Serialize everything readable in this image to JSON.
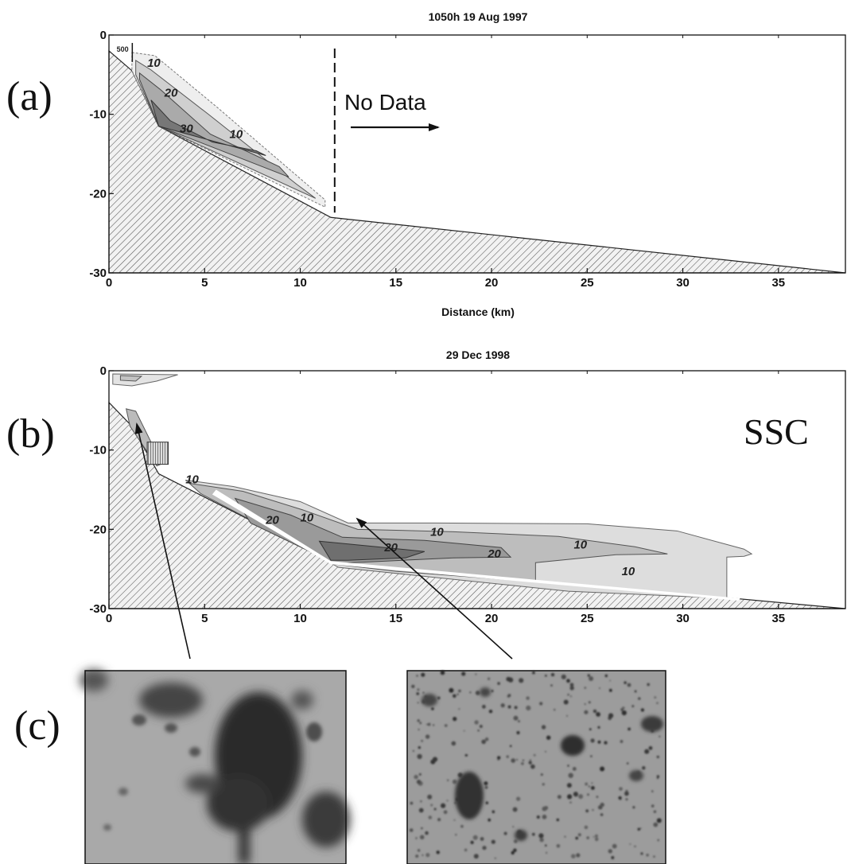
{
  "panel_labels": {
    "a": "(a)",
    "b": "(b)",
    "c": "(c)"
  },
  "chart_data": [
    {
      "type": "contour",
      "title": "1050h 19 Aug 1997",
      "xlabel": "Distance (km)",
      "ylabel": "",
      "xlim": [
        0,
        38.5
      ],
      "ylim": [
        -30,
        0
      ],
      "x_ticks": [
        0,
        5,
        10,
        15,
        20,
        25,
        30,
        35
      ],
      "y_ticks": [
        0,
        -10,
        -20,
        -30
      ],
      "annotation": "No Data",
      "no_data_boundary_x": 11.8,
      "contour_labels": [
        {
          "text": "500",
          "x": 0.4,
          "y": -2.1,
          "size": "small"
        },
        {
          "text": "10",
          "x": 2.0,
          "y": -4.0
        },
        {
          "text": "20",
          "x": 2.9,
          "y": -7.8
        },
        {
          "text": "30",
          "x": 3.7,
          "y": -12.3
        },
        {
          "text": "10",
          "x": 6.3,
          "y": -13.0
        }
      ],
      "bathymetry": {
        "x": [
          0,
          1.2,
          2.6,
          11.6,
          38.5
        ],
        "depth": [
          -2,
          -4.5,
          -11.5,
          -23,
          -30
        ]
      }
    },
    {
      "type": "contour",
      "title": "29 Dec 1998",
      "xlabel": "",
      "ylabel": "",
      "xlim": [
        0,
        38.5
      ],
      "ylim": [
        -30,
        0
      ],
      "x_ticks": [
        0,
        5,
        10,
        15,
        20,
        25,
        30,
        35
      ],
      "y_ticks": [
        0,
        -10,
        -20,
        -30
      ],
      "annotation": "SSC",
      "contour_labels": [
        {
          "text": "10",
          "x": 4.0,
          "y": -14.2
        },
        {
          "text": "10",
          "x": 10.0,
          "y": -19.0
        },
        {
          "text": "20",
          "x": 8.2,
          "y": -19.3
        },
        {
          "text": "10",
          "x": 16.8,
          "y": -20.8
        },
        {
          "text": "20",
          "x": 14.4,
          "y": -22.8
        },
        {
          "text": "20",
          "x": 19.8,
          "y": -23.6
        },
        {
          "text": "10",
          "x": 24.3,
          "y": -22.4
        },
        {
          "text": "10",
          "x": 26.8,
          "y": -25.8
        }
      ],
      "bathymetry": {
        "x": [
          0,
          1.2,
          2.6,
          11.6,
          38.5
        ],
        "depth": [
          -4,
          -7,
          -13,
          -24,
          -30
        ]
      }
    }
  ]
}
